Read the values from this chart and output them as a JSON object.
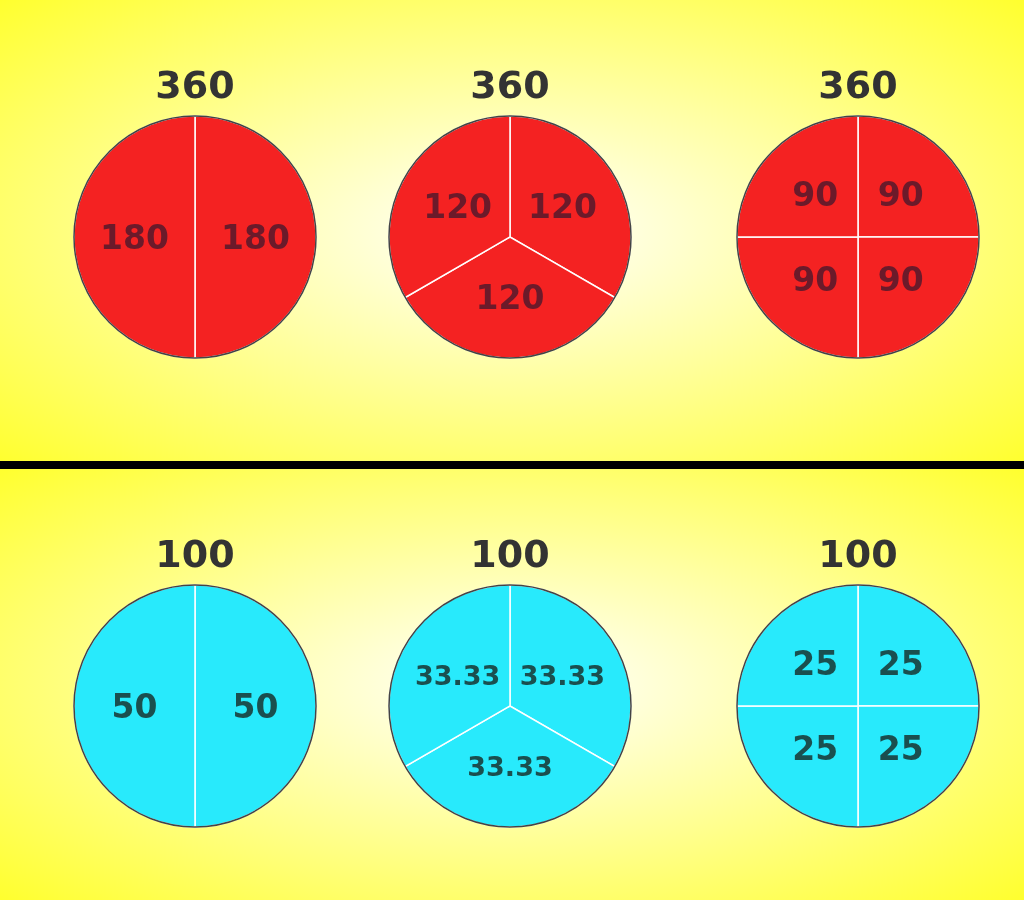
{
  "chart_data": [
    {
      "type": "pie",
      "title": "360",
      "categories": [
        null,
        null
      ],
      "values": [
        180,
        180
      ],
      "colors": [
        "#f42222",
        "#f42222"
      ],
      "data_labels": true
    },
    {
      "type": "pie",
      "title": "360",
      "categories": [
        null,
        null,
        null
      ],
      "values": [
        120,
        120,
        120
      ],
      "colors": [
        "#f42222",
        "#f42222",
        "#f42222"
      ],
      "data_labels": true
    },
    {
      "type": "pie",
      "title": "360",
      "categories": [
        null,
        null,
        null,
        null
      ],
      "values": [
        90,
        90,
        90,
        90
      ],
      "colors": [
        "#f42222",
        "#f42222",
        "#f42222",
        "#f42222"
      ],
      "data_labels": true
    },
    {
      "type": "pie",
      "title": "100",
      "categories": [
        null,
        null
      ],
      "values": [
        50,
        50
      ],
      "colors": [
        "#28eafc",
        "#28eafc"
      ],
      "data_labels": true
    },
    {
      "type": "pie",
      "title": "100",
      "categories": [
        null,
        null,
        null
      ],
      "values": [
        33.33,
        33.33,
        33.33
      ],
      "colors": [
        "#28eafc",
        "#28eafc",
        "#28eafc"
      ],
      "data_labels": true
    },
    {
      "type": "pie",
      "title": "100",
      "categories": [
        null,
        null,
        null,
        null
      ],
      "values": [
        25,
        25,
        25,
        25
      ],
      "colors": [
        "#28eafc",
        "#28eafc",
        "#28eafc",
        "#28eafc"
      ],
      "data_labels": true
    }
  ]
}
